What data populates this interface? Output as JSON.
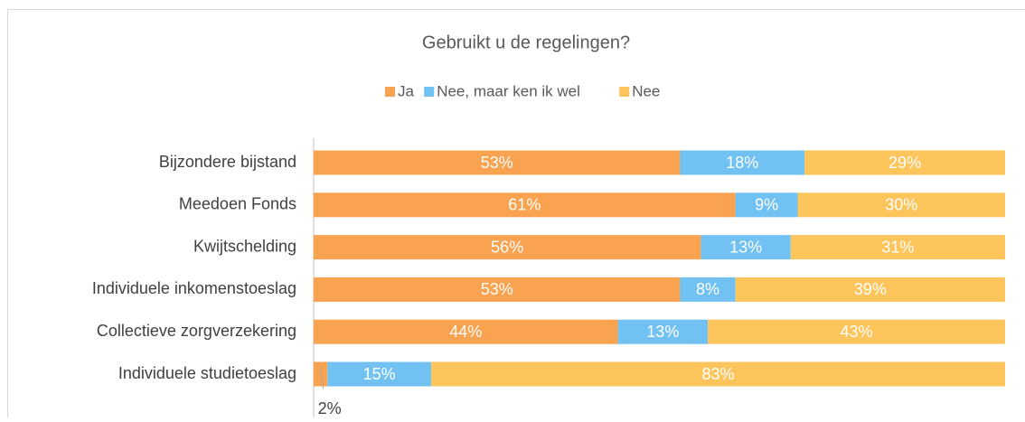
{
  "chart_data": {
    "type": "bar",
    "orientation": "horizontal",
    "stacked": true,
    "title": "Gebruikt u de regelingen?",
    "categories": [
      "Bijzondere bijstand",
      "Meedoen Fonds",
      "Kwijtschelding",
      "Individuele inkomenstoeslag",
      "Collectieve zorgverzekering",
      "Individuele studietoeslag"
    ],
    "series": [
      {
        "name": "Ja",
        "color": "#f9a24f",
        "values": [
          53,
          61,
          56,
          53,
          44,
          2
        ],
        "value_labels": [
          "53%",
          "61%",
          "56%",
          "53%",
          "44%",
          "2%"
        ]
      },
      {
        "name": "Nee, maar ken ik wel",
        "color": "#71c2f2",
        "values": [
          18,
          9,
          13,
          8,
          13,
          15
        ],
        "value_labels": [
          "18%",
          "9%",
          "13%",
          "8%",
          "13%",
          "15%"
        ]
      },
      {
        "name": "Nee",
        "color": "#fdc55c",
        "values": [
          29,
          30,
          31,
          39,
          43,
          83
        ],
        "value_labels": [
          "29%",
          "30%",
          "31%",
          "39%",
          "43%",
          "83%"
        ]
      }
    ],
    "xlim": [
      0,
      100
    ],
    "legend": "top"
  }
}
